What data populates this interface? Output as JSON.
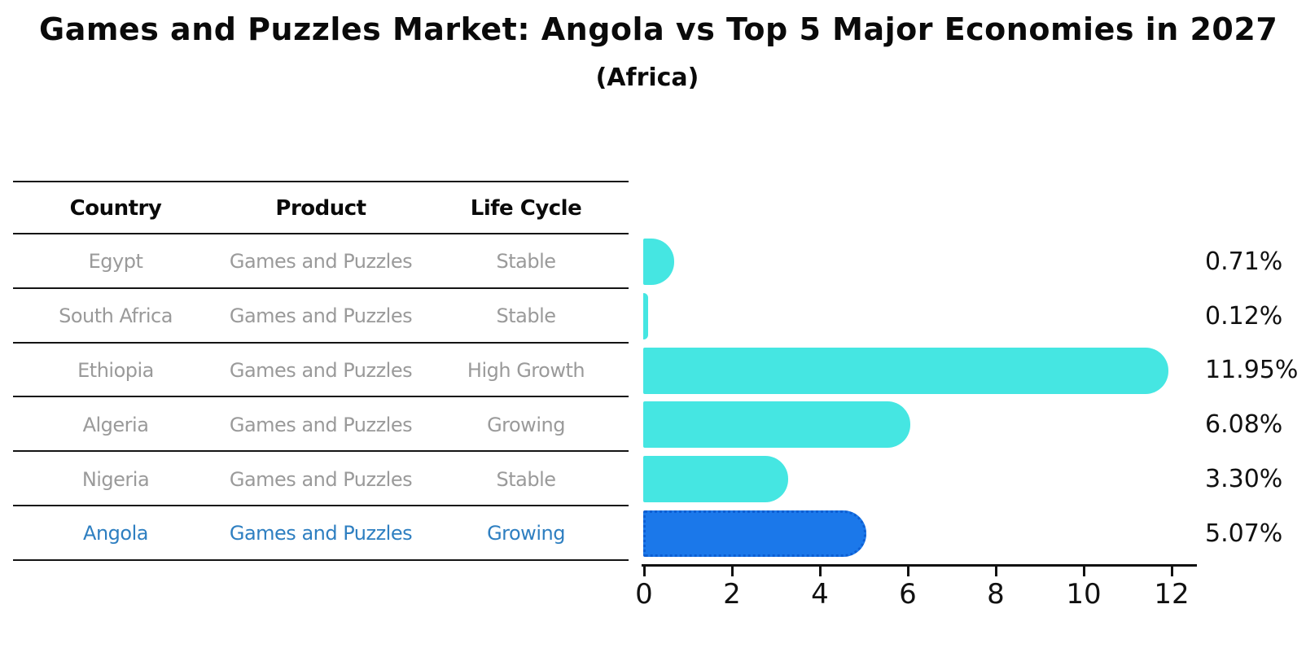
{
  "title": "Games and Puzzles Market: Angola vs Top 5 Major Economies in 2027",
  "subtitle": "(Africa)",
  "table": {
    "headers": [
      "Country",
      "Product",
      "Life Cycle"
    ],
    "rows": [
      {
        "country": "Egypt",
        "product": "Games and Puzzles",
        "life_cycle": "Stable",
        "highlighted": false
      },
      {
        "country": "South Africa",
        "product": "Games and Puzzles",
        "life_cycle": "Stable",
        "highlighted": false
      },
      {
        "country": "Ethiopia",
        "product": "Games and Puzzles",
        "life_cycle": "High Growth",
        "highlighted": false
      },
      {
        "country": "Algeria",
        "product": "Games and Puzzles",
        "life_cycle": "Growing",
        "highlighted": false
      },
      {
        "country": "Nigeria",
        "product": "Games and Puzzles",
        "life_cycle": "Stable",
        "highlighted": false
      },
      {
        "country": "Angola",
        "product": "Games and Puzzles",
        "life_cycle": "Growing",
        "highlighted": true
      }
    ]
  },
  "chart_data": {
    "type": "bar",
    "orientation": "horizontal",
    "title": "Games and Puzzles Market: Angola vs Top 5 Major Economies in 2027",
    "subtitle": "(Africa)",
    "categories": [
      "Egypt",
      "South Africa",
      "Ethiopia",
      "Algeria",
      "Nigeria",
      "Angola"
    ],
    "values": [
      0.71,
      0.12,
      11.95,
      6.08,
      3.3,
      5.07
    ],
    "value_labels": [
      "0.71%",
      "0.12%",
      "11.95%",
      "6.08%",
      "3.30%",
      "5.07%"
    ],
    "x_ticks": [
      0,
      2,
      4,
      6,
      8,
      10,
      12
    ],
    "xlim": [
      0,
      12.6
    ],
    "grid": false,
    "legend": null,
    "highlight_index": 5
  },
  "colors": {
    "bar_default": "#45e6e2",
    "bar_highlight": "#1b78ea",
    "bar_highlight_border": "#0d5ed2",
    "row_text": "#9a9a9a",
    "highlight_text": "#2e7fc1",
    "axis": "#111111"
  }
}
